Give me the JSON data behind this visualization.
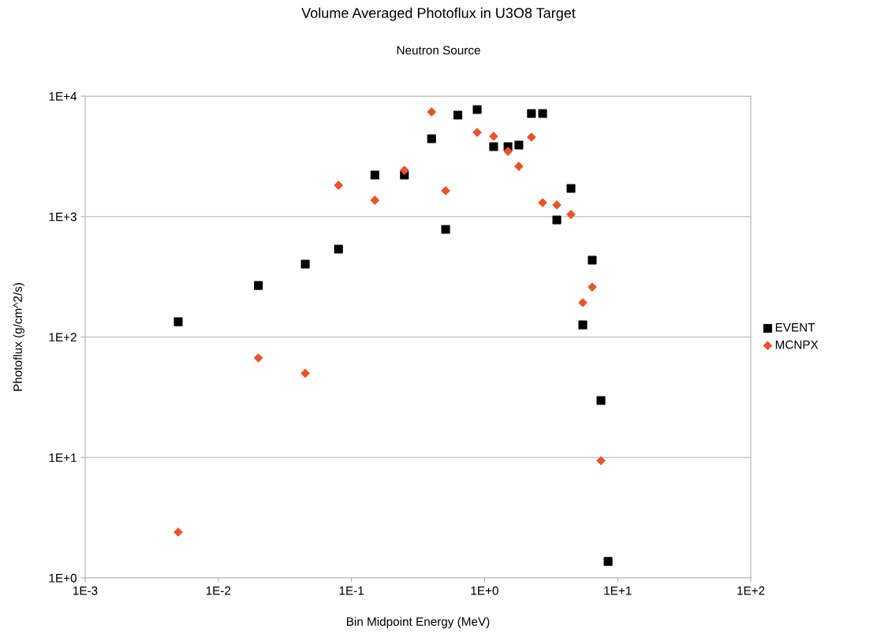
{
  "chart_data": {
    "type": "scatter",
    "title": "Volume Averaged Photoflux in U3O8 Target",
    "subtitle": "Neutron Source",
    "xlabel": "Bin Midpoint Energy (MeV)",
    "ylabel": "Photoflux (g/cm^2/s)",
    "log": "xy",
    "grid": "y",
    "legend": "right",
    "xlim": [
      0.001,
      100
    ],
    "ylim": [
      1,
      10000
    ],
    "xticks": [
      {
        "value": 0.001,
        "label": "1E-3"
      },
      {
        "value": 0.01,
        "label": "1E-2"
      },
      {
        "value": 0.1,
        "label": "1E-1"
      },
      {
        "value": 1,
        "label": "1E+0"
      },
      {
        "value": 10,
        "label": "1E+1"
      },
      {
        "value": 100,
        "label": "1E+2"
      }
    ],
    "yticks": [
      {
        "value": 1,
        "label": "1E+0"
      },
      {
        "value": 10,
        "label": "1E+1"
      },
      {
        "value": 100,
        "label": "1E+2"
      },
      {
        "value": 1000,
        "label": "1E+3"
      },
      {
        "value": 10000,
        "label": "1E+4"
      }
    ],
    "series": [
      {
        "name": "EVENT",
        "color": "#000000",
        "marker": "square",
        "x": [
          0.005,
          0.02,
          0.045,
          0.08,
          0.15,
          0.25,
          0.4,
          0.51,
          0.63,
          0.88,
          1.17,
          1.5,
          1.81,
          2.25,
          2.73,
          3.49,
          4.46,
          5.47,
          6.44,
          7.49,
          8.47
        ],
        "values": [
          134,
          268,
          403,
          537,
          2215,
          2215,
          4430,
          783,
          6965,
          7740,
          3810,
          3810,
          3930,
          7180,
          7180,
          938,
          1714,
          126,
          435,
          29.7,
          1.37
        ]
      },
      {
        "name": "MCNPX",
        "color": "#e8542a",
        "marker": "diamond",
        "x": [
          0.005,
          0.02,
          0.045,
          0.08,
          0.15,
          0.25,
          0.4,
          0.51,
          0.88,
          1.17,
          1.5,
          1.81,
          2.25,
          2.73,
          3.49,
          4.46,
          5.47,
          6.44,
          7.49
        ],
        "values": [
          2.4,
          67,
          50,
          1820,
          1367,
          2425,
          7400,
          1640,
          5000,
          4640,
          3480,
          2615,
          4570,
          1306,
          1250,
          1042,
          193,
          260,
          9.4
        ]
      }
    ]
  }
}
